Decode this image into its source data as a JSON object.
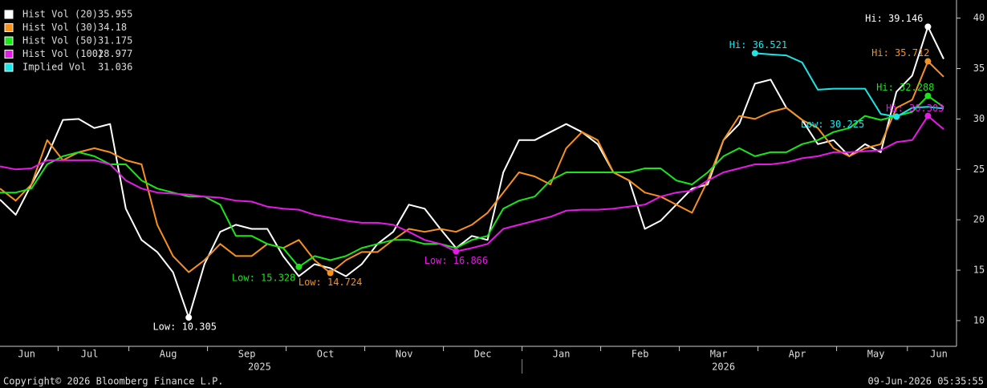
{
  "chart_data": {
    "type": "line",
    "categories": [
      null,
      null,
      "Jun",
      null,
      null,
      null,
      "Jul",
      null,
      null,
      null,
      null,
      "Aug",
      null,
      null,
      null,
      null,
      "Sep",
      null,
      null,
      null,
      null,
      "Oct",
      null,
      null,
      null,
      null,
      "Nov",
      null,
      null,
      null,
      null,
      "Dec",
      null,
      null,
      null,
      null,
      "Jan",
      null,
      null,
      null,
      null,
      "Feb",
      null,
      null,
      null,
      null,
      "Mar",
      null,
      null,
      null,
      null,
      "Apr",
      null,
      null,
      null,
      null,
      "May",
      null,
      null,
      null,
      "Jun"
    ],
    "years": [
      "2025",
      "2026"
    ],
    "ylim": [
      7.45,
      41.4
    ],
    "yticks": [
      10,
      15,
      20,
      25,
      30,
      35,
      40
    ],
    "grid": false,
    "legend": "top-left",
    "series": [
      {
        "name": "Hist Vol (20)",
        "last": 35.955,
        "color": "#ffffff",
        "values": [
          22,
          20.5,
          23.5,
          26.3,
          29.9,
          30,
          29.1,
          29.5,
          21.1,
          18,
          16.8,
          14.8,
          10.305,
          15.6,
          18.8,
          19.5,
          19.1,
          19.1,
          16.4,
          14.4,
          15.6,
          15.2,
          14.4,
          15.6,
          17.6,
          18.8,
          21.5,
          21.1,
          19.1,
          17.2,
          18.4,
          18,
          24.7,
          27.9,
          27.9,
          28.7,
          29.5,
          28.7,
          27.5,
          24.7,
          23.9,
          19.1,
          19.9,
          21.5,
          23.1,
          23.5,
          27.9,
          29.5,
          33.5,
          33.9,
          31.1,
          29.9,
          27.5,
          27.9,
          26.3,
          27.5,
          26.7,
          32.7,
          34.3,
          39.146,
          35.955
        ]
      },
      {
        "name": "Hist Vol (30)",
        "last": 34.18,
        "color": "#f7901e",
        "values": [
          23.1,
          21.9,
          23.5,
          27.9,
          25.9,
          26.7,
          27.1,
          26.7,
          25.9,
          25.5,
          19.5,
          16.4,
          14.8,
          16,
          17.6,
          16.4,
          16.4,
          17.6,
          17.2,
          18,
          16,
          14.724,
          16,
          16.8,
          16.8,
          18,
          19.1,
          18.8,
          19.1,
          18.8,
          19.5,
          20.7,
          22.7,
          24.7,
          24.3,
          23.5,
          27.1,
          28.7,
          27.9,
          24.7,
          23.9,
          22.7,
          22.3,
          21.5,
          20.7,
          23.9,
          27.9,
          30.3,
          30,
          30.7,
          31.1,
          29.9,
          29.1,
          27.1,
          26.3,
          27.1,
          27.5,
          31.1,
          31.9,
          35.712,
          34.18
        ]
      },
      {
        "name": "Hist Vol (50)",
        "last": 31.175,
        "color": "#19e619",
        "values": [
          22.7,
          22.7,
          23.1,
          25.5,
          26.3,
          26.7,
          26.3,
          25.5,
          25.5,
          23.9,
          23.1,
          22.7,
          22.3,
          22.3,
          21.5,
          18.4,
          18.4,
          17.6,
          17.2,
          15.328,
          16.4,
          16,
          16.4,
          17.2,
          17.6,
          18,
          18,
          17.6,
          17.6,
          17.2,
          18,
          18.4,
          21.1,
          21.9,
          22.3,
          23.9,
          24.7,
          24.7,
          24.7,
          24.7,
          24.7,
          25.1,
          25.1,
          23.9,
          23.5,
          24.7,
          26.3,
          27.1,
          26.3,
          26.7,
          26.7,
          27.5,
          27.9,
          28.7,
          29.1,
          30.3,
          29.9,
          30.3,
          30.7,
          32.288,
          31.175
        ]
      },
      {
        "name": "Hist Vol (100)",
        "last": 28.977,
        "color": "#e619e6",
        "values": [
          25.3,
          25,
          25.1,
          25.9,
          25.9,
          25.9,
          25.9,
          25.5,
          23.9,
          23.1,
          22.7,
          22.6,
          22.5,
          22.3,
          22.2,
          21.9,
          21.8,
          21.3,
          21.1,
          21,
          20.5,
          20.2,
          19.9,
          19.7,
          19.7,
          19.5,
          18.8,
          18,
          17.6,
          16.866,
          17.2,
          17.6,
          19.1,
          19.5,
          19.9,
          20.3,
          20.9,
          21,
          21,
          21.1,
          21.3,
          21.5,
          22.3,
          22.7,
          22.9,
          23.9,
          24.7,
          25.1,
          25.5,
          25.5,
          25.7,
          26.1,
          26.3,
          26.7,
          26.7,
          26.8,
          26.9,
          27.7,
          27.9,
          30.303,
          28.977
        ]
      },
      {
        "name": "Implied Vol",
        "last": 31.036,
        "color": "#19e6e6",
        "values": [
          null,
          null,
          null,
          null,
          null,
          null,
          null,
          null,
          null,
          null,
          null,
          null,
          null,
          null,
          null,
          null,
          null,
          null,
          null,
          null,
          null,
          null,
          null,
          null,
          null,
          null,
          null,
          null,
          null,
          null,
          null,
          null,
          null,
          null,
          null,
          null,
          null,
          null,
          null,
          null,
          null,
          null,
          null,
          null,
          null,
          null,
          null,
          null,
          36.521,
          36.4,
          36.3,
          35.6,
          32.9,
          33,
          33,
          33,
          30.5,
          30.225,
          31.1,
          31.2,
          31.036
        ]
      }
    ],
    "annotations": [
      {
        "series": 0,
        "index": 59,
        "text": "Hi: 39.146"
      },
      {
        "series": 0,
        "index": 12,
        "text": "Low: 10.305"
      },
      {
        "series": 1,
        "index": 59,
        "text": "Hi: 35.712"
      },
      {
        "series": 1,
        "index": 21,
        "text": "Low: 14.724"
      },
      {
        "series": 2,
        "index": 59,
        "text": "Hi: 32.288"
      },
      {
        "series": 2,
        "index": 19,
        "text": "Low: 15.328"
      },
      {
        "series": 3,
        "index": 59,
        "text": "Hi: 30.303"
      },
      {
        "series": 3,
        "index": 29,
        "text": "Low: 16.866"
      },
      {
        "series": 4,
        "index": 48,
        "text": "Hi: 36.521"
      },
      {
        "series": 4,
        "index": 57,
        "text": "Low: 30.225"
      }
    ]
  },
  "footer": {
    "copyright": "Copyright© 2026 Bloomberg Finance L.P.",
    "timestamp": "09-Jun-2026 05:35:55"
  }
}
